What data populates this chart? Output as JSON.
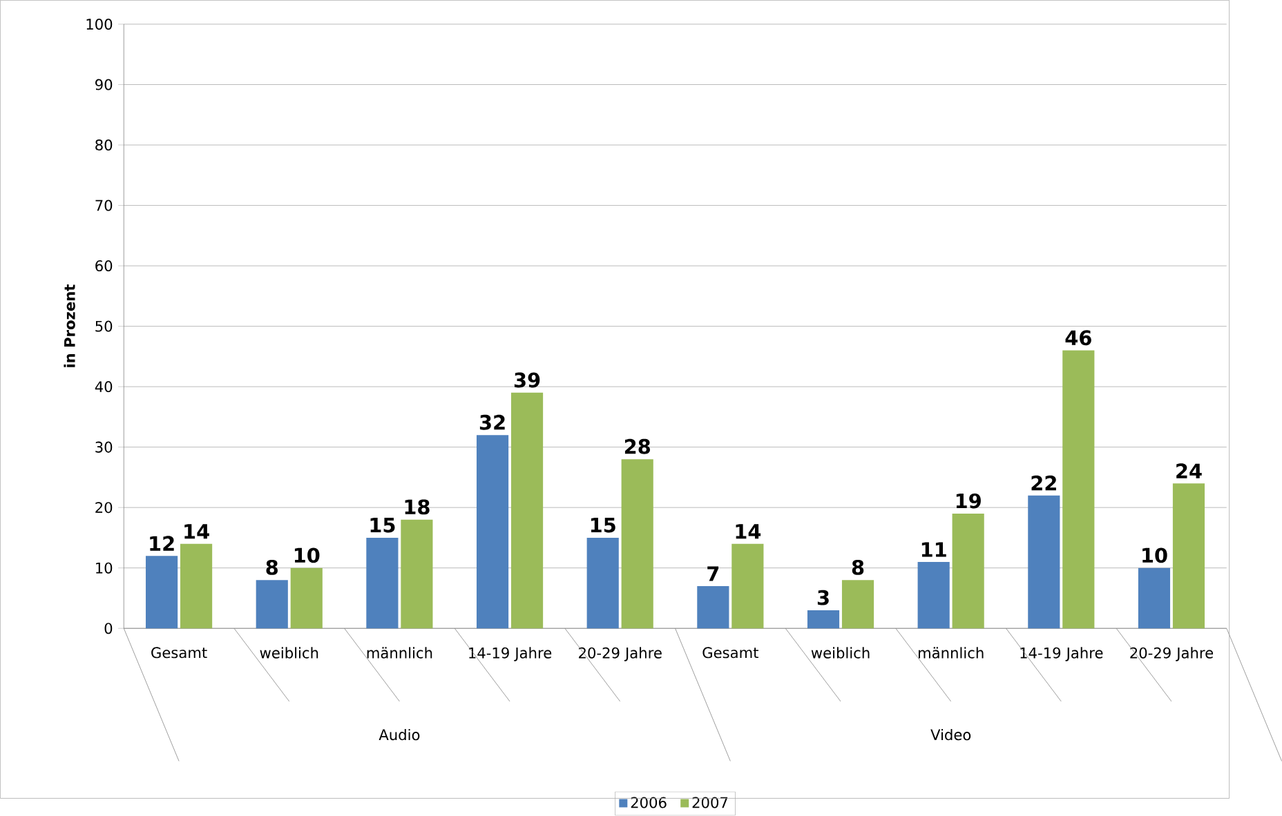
{
  "chart_data": {
    "type": "bar",
    "ylabel": "in Prozent",
    "categories": [
      "Gesamt",
      "weiblich",
      "männlich",
      "14-19 Jahre",
      "20-29 Jahre",
      "Gesamt",
      "weiblich",
      "männlich",
      "14-19 Jahre",
      "20-29 Jahre"
    ],
    "series": [
      {
        "name": "2006",
        "color": "#4f81bd",
        "values": [
          12,
          8,
          15,
          32,
          15,
          7,
          3,
          11,
          22,
          10
        ]
      },
      {
        "name": "2007",
        "color": "#9bbb59",
        "values": [
          14,
          10,
          18,
          39,
          28,
          14,
          8,
          19,
          46,
          24
        ]
      }
    ],
    "annotations": [
      "Audio",
      "Video"
    ],
    "ylim": [
      0,
      100
    ],
    "yticks": [
      0,
      10,
      20,
      30,
      40,
      50,
      60,
      70,
      80,
      90,
      100
    ],
    "grid": "y",
    "legend": "bottom",
    "data_labels": true
  }
}
